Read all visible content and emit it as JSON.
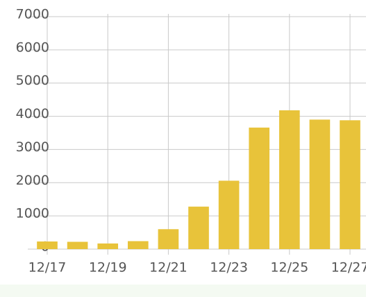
{
  "chart_data": {
    "type": "bar",
    "categories": [
      "12/17",
      null,
      "12/19",
      null,
      "12/21",
      null,
      "12/23",
      null,
      "12/25",
      null,
      "12/27"
    ],
    "values": [
      230,
      220,
      170,
      240,
      600,
      1280,
      2060,
      3660,
      4180,
      3900,
      3880
    ],
    "color": "#e8c33a",
    "ylim": [
      0,
      7000
    ],
    "yticks": [
      0,
      1000,
      2000,
      3000,
      4000,
      5000,
      6000,
      7000
    ],
    "grid": true
  }
}
